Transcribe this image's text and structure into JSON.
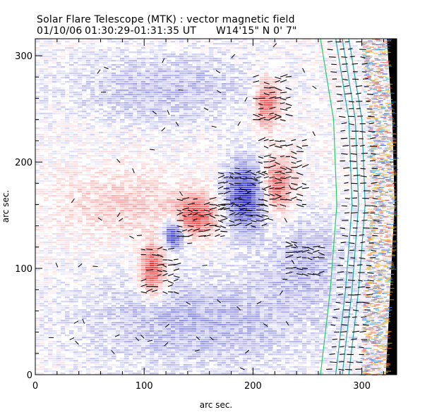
{
  "chart_data": {
    "type": "heatmap",
    "title": "Solar Flare Telescope (MTK) : vector magnetic field",
    "subtitle_date": "01/10/06",
    "subtitle_time": "01:30:29-01:31:35 UT",
    "subtitle_position": "W14'15\"  N 0' 7\"",
    "xlabel": "arc sec.",
    "ylabel": "arc sec.",
    "xlim": [
      0,
      332
    ],
    "ylim": [
      0,
      316
    ],
    "x_ticks": [
      0,
      100,
      200,
      300
    ],
    "y_ticks": [
      0,
      100,
      200,
      300
    ],
    "colors": {
      "positive_polarity": "#ee3a3a",
      "negative_polarity": "#2828c8",
      "background": "#ffffff",
      "off_disk": "#000000",
      "contour": "#22cc66",
      "vector": "#000000"
    },
    "field_regions": [
      {
        "name": "positive-left-lobe",
        "polarity": "positive",
        "cx": 108,
        "cy": 98,
        "rx": 13,
        "ry": 28,
        "strength": 1.0
      },
      {
        "name": "negative-center-small",
        "polarity": "negative",
        "cx": 127,
        "cy": 132,
        "rx": 11,
        "ry": 16,
        "strength": 1.0
      },
      {
        "name": "positive-middle",
        "polarity": "positive",
        "cx": 148,
        "cy": 150,
        "rx": 22,
        "ry": 22,
        "strength": 0.9
      },
      {
        "name": "negative-center-large",
        "polarity": "negative",
        "cx": 193,
        "cy": 168,
        "rx": 22,
        "ry": 38,
        "strength": 1.0
      },
      {
        "name": "positive-right-lower",
        "polarity": "positive",
        "cx": 222,
        "cy": 178,
        "rx": 16,
        "ry": 30,
        "strength": 0.85
      },
      {
        "name": "positive-right-upper",
        "polarity": "positive",
        "cx": 213,
        "cy": 255,
        "rx": 14,
        "ry": 26,
        "strength": 0.85
      },
      {
        "name": "positive-diffuse-left",
        "polarity": "positive",
        "cx": 80,
        "cy": 160,
        "rx": 70,
        "ry": 35,
        "strength": 0.28
      },
      {
        "name": "negative-diffuse-top",
        "polarity": "negative",
        "cx": 120,
        "cy": 270,
        "rx": 110,
        "ry": 40,
        "strength": 0.3
      },
      {
        "name": "negative-diffuse-bottom",
        "polarity": "negative",
        "cx": 150,
        "cy": 50,
        "rx": 130,
        "ry": 55,
        "strength": 0.35
      },
      {
        "name": "negative-diffuse-right",
        "polarity": "negative",
        "cx": 250,
        "cy": 110,
        "rx": 45,
        "ry": 50,
        "strength": 0.3
      }
    ],
    "limb_x_at_y": [
      [
        0,
        322
      ],
      [
        80,
        326
      ],
      [
        160,
        330
      ],
      [
        240,
        328
      ],
      [
        316,
        323
      ]
    ],
    "contour_x_at_y": [
      [
        0,
        262
      ],
      [
        80,
        271
      ],
      [
        160,
        277
      ],
      [
        240,
        274
      ],
      [
        316,
        262
      ]
    ],
    "vector_patches": [
      {
        "cx": 112,
        "cy": 98,
        "w": 30,
        "h": 40
      },
      {
        "cx": 150,
        "cy": 148,
        "w": 40,
        "h": 36
      },
      {
        "cx": 190,
        "cy": 165,
        "w": 44,
        "h": 50
      },
      {
        "cx": 225,
        "cy": 190,
        "w": 40,
        "h": 60
      },
      {
        "cx": 215,
        "cy": 260,
        "w": 30,
        "h": 40
      },
      {
        "cx": 245,
        "cy": 110,
        "w": 30,
        "h": 30
      }
    ]
  }
}
